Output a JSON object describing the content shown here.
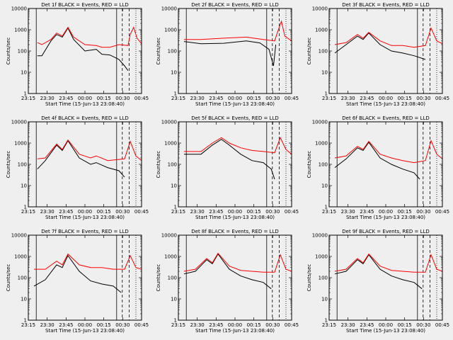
{
  "figure": {
    "background": "#efefef"
  },
  "chart_data": {
    "type": "line",
    "colors": {
      "events": "#000000",
      "lld": "#ff0000"
    },
    "xlabel": "Start Time (15-Jun-13 23:08:40)",
    "ylabel": "Counts/sec",
    "yscale": "log",
    "ylim": [
      1,
      10000
    ],
    "y_ticks": [
      1,
      10,
      100,
      1000,
      10000
    ],
    "x_ticks": [
      "23:15",
      "23:30",
      "23:45",
      "00:00",
      "00:15",
      "00:30",
      "00:45"
    ],
    "panels": [
      {
        "title": "Det  1f BLACK = Events, RED = LLD",
        "red": [
          [
            0,
            0.08,
            250
          ],
          [
            0,
            0.12,
            200
          ],
          [
            0,
            0.2,
            350
          ],
          [
            0,
            0.25,
            700
          ],
          [
            0,
            0.3,
            500
          ],
          [
            0,
            0.35,
            1300
          ],
          [
            0,
            0.4,
            450
          ],
          [
            0,
            0.5,
            200
          ],
          [
            0,
            0.6,
            180
          ],
          [
            0,
            0.65,
            150
          ],
          [
            0,
            0.72,
            150
          ],
          [
            0,
            0.8,
            200
          ],
          [
            0,
            0.88,
            180
          ],
          [
            0,
            0.9,
            600
          ],
          [
            0,
            0.93,
            1300
          ],
          [
            0,
            0.96,
            400
          ],
          [
            0,
            1,
            220
          ]
        ],
        "black": [
          [
            0,
            0.08,
            60
          ],
          [
            0,
            0.12,
            60
          ],
          [
            0,
            0.2,
            300
          ],
          [
            0,
            0.25,
            600
          ],
          [
            0,
            0.3,
            450
          ],
          [
            0,
            0.35,
            1200
          ],
          [
            0,
            0.4,
            350
          ],
          [
            0,
            0.5,
            100
          ],
          [
            0,
            0.6,
            120
          ],
          [
            0,
            0.65,
            70
          ],
          [
            0,
            0.72,
            65
          ],
          [
            0,
            0.8,
            40
          ],
          [
            0,
            0.85,
            20
          ],
          [
            0,
            0.88,
            12
          ]
        ]
      },
      {
        "title": "Det  2f BLACK = Events, RED = LLD",
        "red": [
          [
            0,
            0.05,
            350
          ],
          [
            0,
            0.2,
            350
          ],
          [
            0,
            0.4,
            400
          ],
          [
            0,
            0.6,
            450
          ],
          [
            0,
            0.75,
            350
          ],
          [
            0,
            0.85,
            300
          ],
          [
            0,
            0.88,
            900
          ],
          [
            0,
            0.91,
            2500
          ],
          [
            0,
            0.94,
            500
          ],
          [
            0,
            1,
            300
          ]
        ],
        "black": [
          [
            0,
            0.05,
            280
          ],
          [
            0,
            0.2,
            220
          ],
          [
            0,
            0.4,
            230
          ],
          [
            0,
            0.6,
            300
          ],
          [
            0,
            0.72,
            240
          ],
          [
            0,
            0.8,
            120
          ],
          [
            0,
            0.84,
            20
          ],
          [
            0,
            0.86,
            200
          ]
        ]
      },
      {
        "title": "Det  3f BLACK = Events, RED = LLD",
        "red": [
          [
            0,
            0.05,
            200
          ],
          [
            0,
            0.15,
            250
          ],
          [
            0,
            0.25,
            600
          ],
          [
            0,
            0.3,
            400
          ],
          [
            0,
            0.35,
            750
          ],
          [
            0,
            0.45,
            300
          ],
          [
            0,
            0.55,
            180
          ],
          [
            0,
            0.65,
            180
          ],
          [
            0,
            0.75,
            150
          ],
          [
            0,
            0.85,
            180
          ],
          [
            0,
            0.9,
            1200
          ],
          [
            0,
            0.95,
            300
          ],
          [
            0,
            1,
            220
          ]
        ],
        "black": [
          [
            0,
            0.05,
            80
          ],
          [
            0,
            0.15,
            200
          ],
          [
            0,
            0.25,
            500
          ],
          [
            0,
            0.3,
            350
          ],
          [
            0,
            0.35,
            700
          ],
          [
            0,
            0.45,
            200
          ],
          [
            0,
            0.55,
            100
          ],
          [
            0,
            0.65,
            80
          ],
          [
            0,
            0.75,
            60
          ],
          [
            0,
            0.85,
            40
          ]
        ]
      },
      {
        "title": "Det  4f BLACK = Events, RED = LLD",
        "red": [
          [
            0,
            0.08,
            180
          ],
          [
            0,
            0.15,
            200
          ],
          [
            0,
            0.25,
            900
          ],
          [
            0,
            0.3,
            500
          ],
          [
            0,
            0.35,
            1400
          ],
          [
            0,
            0.45,
            300
          ],
          [
            0,
            0.55,
            200
          ],
          [
            0,
            0.6,
            250
          ],
          [
            0,
            0.7,
            150
          ],
          [
            0,
            0.85,
            180
          ],
          [
            0,
            0.9,
            1200
          ],
          [
            0,
            0.95,
            250
          ],
          [
            0,
            1,
            150
          ]
        ],
        "black": [
          [
            0,
            0.08,
            60
          ],
          [
            0,
            0.15,
            150
          ],
          [
            0,
            0.25,
            800
          ],
          [
            0,
            0.3,
            450
          ],
          [
            0,
            0.35,
            1300
          ],
          [
            0,
            0.45,
            200
          ],
          [
            0,
            0.55,
            100
          ],
          [
            0,
            0.6,
            120
          ],
          [
            0,
            0.7,
            70
          ],
          [
            0,
            0.8,
            50
          ],
          [
            0,
            0.85,
            25
          ]
        ]
      },
      {
        "title": "Det  5f BLACK = Events, RED = LLD",
        "red": [
          [
            0,
            0.05,
            400
          ],
          [
            0,
            0.2,
            400
          ],
          [
            0,
            0.3,
            1000
          ],
          [
            0,
            0.38,
            1800
          ],
          [
            0,
            0.45,
            1000
          ],
          [
            0,
            0.55,
            600
          ],
          [
            0,
            0.65,
            450
          ],
          [
            0,
            0.75,
            400
          ],
          [
            0,
            0.85,
            350
          ],
          [
            0,
            0.9,
            1800
          ],
          [
            0,
            0.95,
            500
          ],
          [
            0,
            1,
            300
          ]
        ],
        "black": [
          [
            0,
            0.05,
            300
          ],
          [
            0,
            0.2,
            300
          ],
          [
            0,
            0.3,
            800
          ],
          [
            0,
            0.38,
            1500
          ],
          [
            0,
            0.45,
            800
          ],
          [
            0,
            0.55,
            300
          ],
          [
            0,
            0.65,
            150
          ],
          [
            0,
            0.75,
            120
          ],
          [
            0,
            0.82,
            60
          ],
          [
            0,
            0.85,
            20
          ]
        ]
      },
      {
        "title": "Det  6f BLACK = Events, RED = LLD",
        "red": [
          [
            0,
            0.05,
            200
          ],
          [
            0,
            0.15,
            250
          ],
          [
            0,
            0.25,
            700
          ],
          [
            0,
            0.3,
            500
          ],
          [
            0,
            0.35,
            1200
          ],
          [
            0,
            0.45,
            300
          ],
          [
            0,
            0.55,
            200
          ],
          [
            0,
            0.65,
            150
          ],
          [
            0,
            0.75,
            120
          ],
          [
            0,
            0.85,
            150
          ],
          [
            0,
            0.9,
            1300
          ],
          [
            0,
            0.95,
            300
          ],
          [
            0,
            1,
            180
          ]
        ],
        "black": [
          [
            0,
            0.05,
            70
          ],
          [
            0,
            0.15,
            180
          ],
          [
            0,
            0.25,
            600
          ],
          [
            0,
            0.3,
            450
          ],
          [
            0,
            0.35,
            1100
          ],
          [
            0,
            0.45,
            200
          ],
          [
            0,
            0.55,
            100
          ],
          [
            0,
            0.65,
            60
          ],
          [
            0,
            0.75,
            40
          ],
          [
            0,
            0.8,
            20
          ]
        ]
      },
      {
        "title": "Det  7f BLACK = Events, RED = LLD",
        "red": [
          [
            0,
            0.05,
            250
          ],
          [
            0,
            0.15,
            250
          ],
          [
            0,
            0.25,
            600
          ],
          [
            0,
            0.3,
            400
          ],
          [
            0,
            0.35,
            1300
          ],
          [
            0,
            0.45,
            400
          ],
          [
            0,
            0.55,
            300
          ],
          [
            0,
            0.65,
            300
          ],
          [
            0,
            0.75,
            250
          ],
          [
            0,
            0.85,
            250
          ],
          [
            0,
            0.9,
            1100
          ],
          [
            0,
            0.95,
            300
          ],
          [
            0,
            1,
            250
          ]
        ],
        "black": [
          [
            0,
            0.05,
            40
          ],
          [
            0,
            0.15,
            80
          ],
          [
            0,
            0.25,
            400
          ],
          [
            0,
            0.3,
            300
          ],
          [
            0,
            0.35,
            1100
          ],
          [
            0,
            0.45,
            200
          ],
          [
            0,
            0.55,
            70
          ],
          [
            0,
            0.65,
            50
          ],
          [
            0,
            0.75,
            40
          ],
          [
            0,
            0.82,
            20
          ]
        ]
      },
      {
        "title": "Det  8f BLACK = Events, RED = LLD",
        "red": [
          [
            0,
            0.05,
            200
          ],
          [
            0,
            0.15,
            250
          ],
          [
            0,
            0.25,
            800
          ],
          [
            0,
            0.3,
            500
          ],
          [
            0,
            0.35,
            1400
          ],
          [
            0,
            0.45,
            350
          ],
          [
            0,
            0.55,
            220
          ],
          [
            0,
            0.65,
            200
          ],
          [
            0,
            0.75,
            180
          ],
          [
            0,
            0.85,
            180
          ],
          [
            0,
            0.9,
            1200
          ],
          [
            0,
            0.95,
            250
          ],
          [
            0,
            1,
            200
          ]
        ],
        "black": [
          [
            0,
            0.05,
            150
          ],
          [
            0,
            0.15,
            200
          ],
          [
            0,
            0.25,
            700
          ],
          [
            0,
            0.3,
            450
          ],
          [
            0,
            0.35,
            1300
          ],
          [
            0,
            0.45,
            250
          ],
          [
            0,
            0.55,
            120
          ],
          [
            0,
            0.65,
            80
          ],
          [
            0,
            0.75,
            60
          ],
          [
            0,
            0.82,
            30
          ]
        ]
      },
      {
        "title": "Det  9f BLACK = Events, RED = LLD",
        "red": [
          [
            0,
            0.05,
            200
          ],
          [
            0,
            0.15,
            250
          ],
          [
            0,
            0.25,
            800
          ],
          [
            0,
            0.3,
            500
          ],
          [
            0,
            0.35,
            1300
          ],
          [
            0,
            0.45,
            350
          ],
          [
            0,
            0.55,
            220
          ],
          [
            0,
            0.65,
            200
          ],
          [
            0,
            0.75,
            180
          ],
          [
            0,
            0.85,
            180
          ],
          [
            0,
            0.9,
            1200
          ],
          [
            0,
            0.95,
            250
          ],
          [
            0,
            1,
            200
          ]
        ],
        "black": [
          [
            0,
            0.05,
            150
          ],
          [
            0,
            0.15,
            200
          ],
          [
            0,
            0.25,
            700
          ],
          [
            0,
            0.3,
            450
          ],
          [
            0,
            0.35,
            1200
          ],
          [
            0,
            0.45,
            250
          ],
          [
            0,
            0.55,
            120
          ],
          [
            0,
            0.65,
            80
          ],
          [
            0,
            0.75,
            60
          ],
          [
            0,
            0.82,
            30
          ]
        ]
      }
    ]
  }
}
